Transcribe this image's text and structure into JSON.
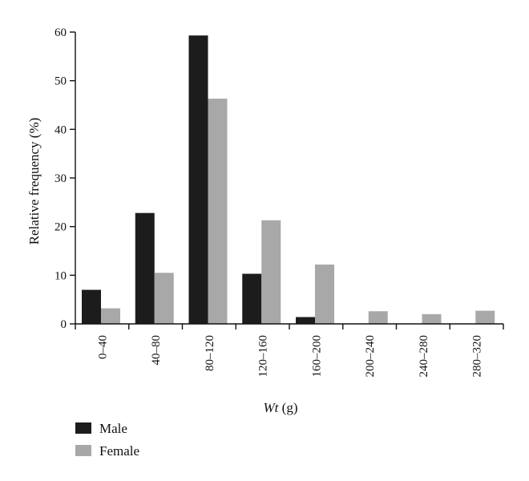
{
  "chart_data": {
    "type": "bar",
    "categories": [
      "0–40",
      "40–80",
      "80–120",
      "120–160",
      "160–200",
      "200–240",
      "240–280",
      "280–320"
    ],
    "series": [
      {
        "name": "Male",
        "values": [
          7,
          22.8,
          59.3,
          10.3,
          1.4,
          0,
          0,
          0
        ],
        "color": "#1c1c1c"
      },
      {
        "name": "Female",
        "values": [
          3.2,
          10.5,
          46.3,
          21.3,
          12.2,
          2.6,
          2.0,
          2.7
        ],
        "color": "#a8a8a8"
      }
    ],
    "ylim": [
      0,
      60
    ],
    "yticks": [
      0,
      10,
      20,
      30,
      40,
      50,
      60
    ],
    "ylabel": "Relative frequency (%)",
    "xlabel": {
      "italic": "Wt",
      "unit": " (g)"
    },
    "legend": "bottom-left",
    "grid": false
  }
}
